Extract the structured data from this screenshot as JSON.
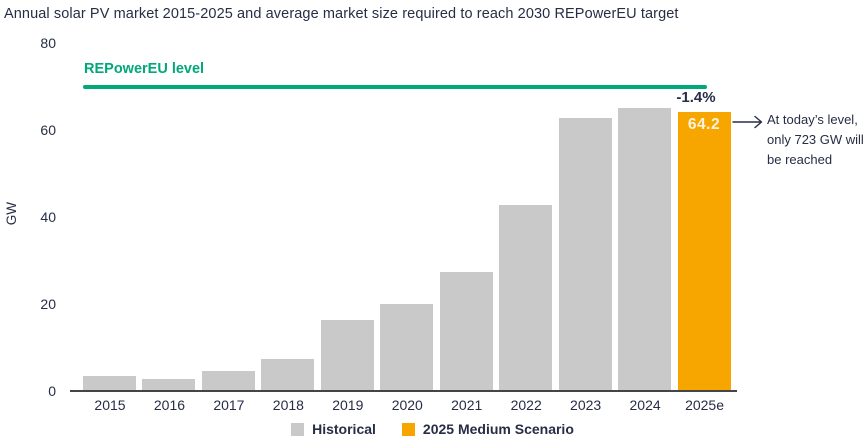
{
  "title": "Annual solar PV market 2015-2025 and average market size required to reach 2030 REPowerEU target",
  "colors": {
    "historical": "#C9C9C9",
    "scenario": "#F7A600",
    "repower_green": "#00A87A",
    "text": "#272D45",
    "axis_line": "#454545",
    "bar_value_text": "#FCF3DD"
  },
  "chart_data": {
    "type": "bar",
    "title": "Annual solar PV market 2015-2025 and average market size required to reach 2030 REPowerEU target",
    "xlabel": "",
    "ylabel": "GW",
    "ylim": [
      0,
      80
    ],
    "yticks": [
      0,
      20,
      40,
      60,
      80
    ],
    "grid": false,
    "legend_position": "bottom",
    "categories": [
      "2015",
      "2016",
      "2017",
      "2018",
      "2019",
      "2020",
      "2021",
      "2022",
      "2023",
      "2024",
      "2025e"
    ],
    "series": [
      {
        "name": "Historical",
        "color_key": "historical",
        "values": [
          3.4,
          2.8,
          4.6,
          7.4,
          16.4,
          20.0,
          27.4,
          42.8,
          62.8,
          65.1,
          null
        ]
      },
      {
        "name": "2025 Medium Scenario",
        "color_key": "scenario",
        "values": [
          null,
          null,
          null,
          null,
          null,
          null,
          null,
          null,
          null,
          null,
          64.2
        ]
      }
    ],
    "reference_line": {
      "label": "REPowerEU level",
      "value": 70
    },
    "annotations": {
      "pct_change_label": "-1.4%",
      "bar_value_label": "64.2",
      "note": "At today’s level, only 723 GW will be reached"
    }
  }
}
